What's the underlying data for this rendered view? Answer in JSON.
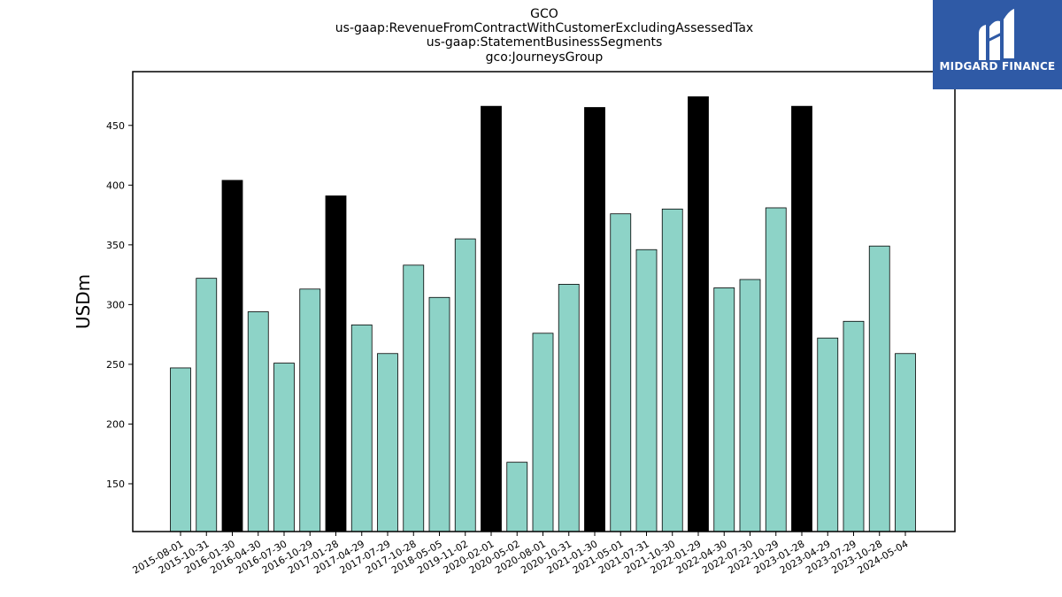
{
  "logo": {
    "text": "MIDGARD FINANCE"
  },
  "chart_data": {
    "type": "bar",
    "title_lines": [
      "GCO",
      "us-gaap:RevenueFromContractWithCustomerExcludingAssessedTax",
      "us-gaap:StatementBusinessSegments",
      "gco:JourneysGroup"
    ],
    "xlabel": "",
    "ylabel": "USDm",
    "ylim": [
      110,
      495
    ],
    "yticks": [
      150,
      200,
      250,
      300,
      350,
      400,
      450
    ],
    "grid": false,
    "colors": {
      "normal": "#8dd3c7",
      "highlight": "#000000",
      "edge": "#000000"
    },
    "categories": [
      "2015-08-01",
      "2015-10-31",
      "2016-01-30",
      "2016-04-30",
      "2016-07-30",
      "2016-10-29",
      "2017-01-28",
      "2017-04-29",
      "2017-07-29",
      "2017-10-28",
      "2018-05-05",
      "2019-11-02",
      "2020-02-01",
      "2020-05-02",
      "2020-08-01",
      "2020-10-31",
      "2021-01-30",
      "2021-05-01",
      "2021-07-31",
      "2021-10-30",
      "2022-01-29",
      "2022-04-30",
      "2022-07-30",
      "2022-10-29",
      "2023-01-28",
      "2023-04-29",
      "2023-07-29",
      "2023-10-28",
      "2024-05-04"
    ],
    "values": [
      247,
      322,
      404,
      294,
      251,
      313,
      391,
      283,
      259,
      333,
      306,
      355,
      466,
      168,
      276,
      317,
      465,
      376,
      346,
      380,
      474,
      314,
      321,
      381,
      466,
      272,
      286,
      349,
      259
    ],
    "highlighted": [
      false,
      false,
      true,
      false,
      false,
      false,
      true,
      false,
      false,
      false,
      false,
      false,
      true,
      false,
      false,
      false,
      true,
      false,
      false,
      false,
      true,
      false,
      false,
      false,
      true,
      false,
      false,
      false,
      false
    ]
  }
}
